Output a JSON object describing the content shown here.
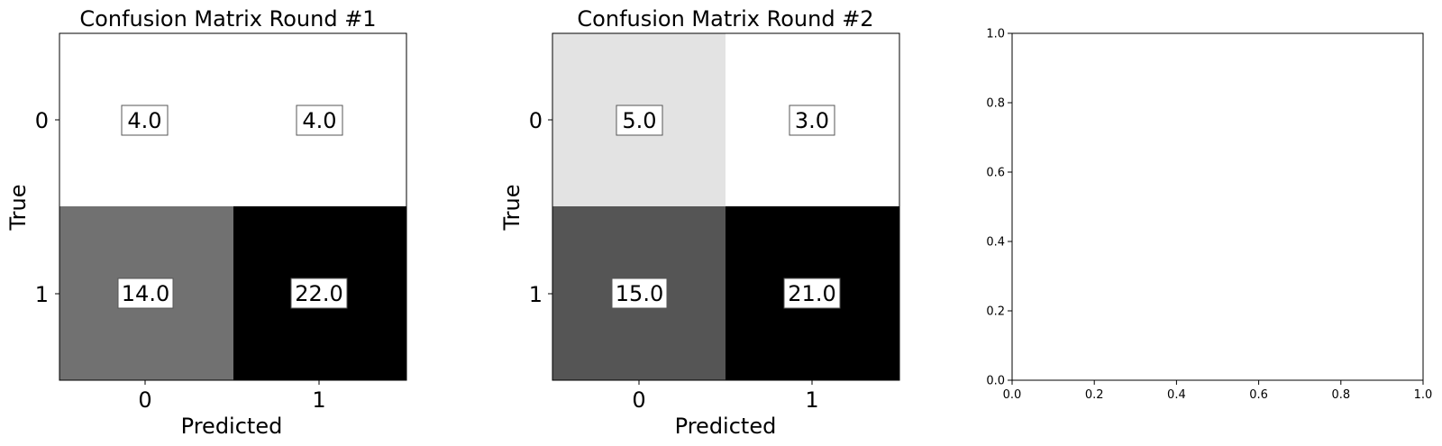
{
  "chart_data": [
    {
      "type": "heatmap",
      "title": "Confusion Matrix Round #1",
      "xlabel": "Predicted",
      "ylabel": "True",
      "x_ticks": [
        "0",
        "1"
      ],
      "y_ticks": [
        "0",
        "1"
      ],
      "matrix": [
        [
          4.0,
          4.0
        ],
        [
          14.0,
          22.0
        ]
      ],
      "cell_labels": [
        [
          "4.0",
          "4.0"
        ],
        [
          "14.0",
          "22.0"
        ]
      ],
      "colormap": "greys"
    },
    {
      "type": "heatmap",
      "title": "Confusion Matrix Round #2",
      "xlabel": "Predicted",
      "ylabel": "True",
      "x_ticks": [
        "0",
        "1"
      ],
      "y_ticks": [
        "0",
        "1"
      ],
      "matrix": [
        [
          5.0,
          3.0
        ],
        [
          15.0,
          21.0
        ]
      ],
      "cell_labels": [
        [
          "5.0",
          "3.0"
        ],
        [
          "15.0",
          "21.0"
        ]
      ],
      "colormap": "greys"
    },
    {
      "type": "scatter",
      "title": "",
      "xlabel": "",
      "ylabel": "",
      "xlim": [
        0.0,
        1.0
      ],
      "ylim": [
        0.0,
        1.0
      ],
      "x_ticks": [
        "0.0",
        "0.2",
        "0.4",
        "0.6",
        "0.8",
        "1.0"
      ],
      "y_ticks": [
        "0.0",
        "0.2",
        "0.4",
        "0.6",
        "0.8",
        "1.0"
      ],
      "series": []
    }
  ]
}
